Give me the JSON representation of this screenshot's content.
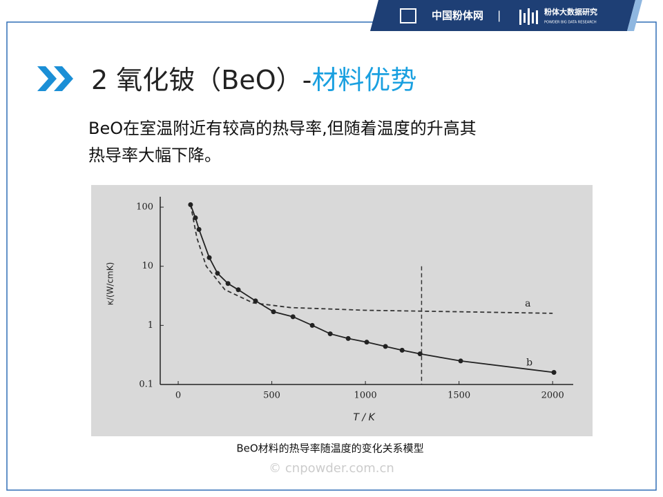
{
  "header": {
    "brand": "中国粉体网",
    "division": "粉体大数据研究",
    "division_en": "POWDER BIG DATA RESEARCH"
  },
  "title": {
    "lead": "2 氧化铍（BeO）-",
    "highlight": "材料优势"
  },
  "body": [
    "BeO在室温附近有较高的热导率,但随着温度的升高其",
    "热导率大幅下降。"
  ],
  "figure": {
    "chart_data": {
      "type": "line",
      "xlabel": "T / K",
      "ylabel": "κ/(W/cmK)",
      "log_y": true,
      "xlim": [
        -96,
        2110
      ],
      "xticks": [
        0,
        500,
        1000,
        1500,
        2000
      ],
      "ylim": [
        0.1,
        150
      ],
      "yticks": [
        100,
        10,
        1,
        0.1
      ],
      "vline": 1300,
      "series": [
        {
          "name": "a",
          "color": "#333333",
          "dashed": true,
          "markers": false,
          "x": [
            66,
            100,
            150,
            250,
            400,
            600,
            1000,
            1500,
            2000
          ],
          "values": [
            110,
            30,
            10,
            4,
            2.4,
            2,
            1.8,
            1.7,
            1.6
          ]
        },
        {
          "name": "b",
          "color": "#222222",
          "dashed": false,
          "markers": true,
          "x": [
            66,
            92,
            111,
            166,
            210,
            266,
            321,
            413,
            509,
            613,
            716,
            812,
            908,
            1007,
            1107,
            1196,
            1292,
            1509,
            2007
          ],
          "values": [
            110,
            66,
            42,
            14,
            7.6,
            5.1,
            4,
            2.6,
            1.7,
            1.4,
            1,
            0.72,
            0.6,
            0.52,
            0.44,
            0.38,
            0.33,
            0.25,
            0.16
          ]
        }
      ]
    },
    "caption": "BeO材料的热导率随温度的变化关系模型"
  },
  "watermark": "© cnpowder.com.cn"
}
